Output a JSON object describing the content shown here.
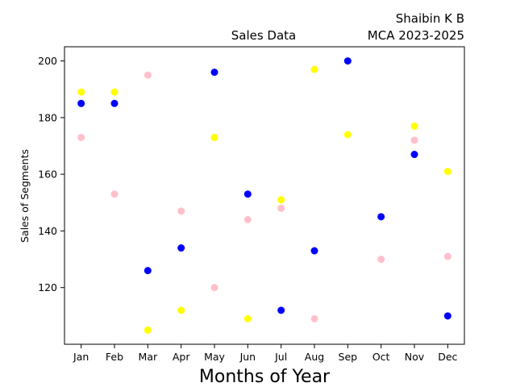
{
  "chart_data": {
    "type": "scatter",
    "title": "Sales Data",
    "author_title": "Shaibin K B \nMCA 2023-2025",
    "author_line1": "Shaibin K B",
    "author_line2": "MCA 2023-2025",
    "xlabel": "Months of Year",
    "ylabel": "Sales of Segments",
    "categories": [
      "Jan",
      "Feb",
      "Mar",
      "Apr",
      "May",
      "Jun",
      "Jul",
      "Aug",
      "Sep",
      "Oct",
      "Nov",
      "Dec"
    ],
    "ylim": [
      100,
      205
    ],
    "yticks": [
      120,
      140,
      160,
      180,
      200
    ],
    "grid": false,
    "series": [
      {
        "color": "#0000ff",
        "values": [
          185,
          185,
          126,
          134,
          196,
          153,
          112,
          133,
          200,
          145,
          167,
          110
        ]
      },
      {
        "color": "#ffff00",
        "values": [
          189,
          189,
          105,
          112,
          173,
          109,
          151,
          197,
          174,
          null,
          177,
          161
        ]
      },
      {
        "color": "#ffc0cb",
        "values": [
          173,
          153,
          195,
          147,
          120,
          144,
          148,
          109,
          null,
          130,
          172,
          131
        ]
      }
    ]
  }
}
